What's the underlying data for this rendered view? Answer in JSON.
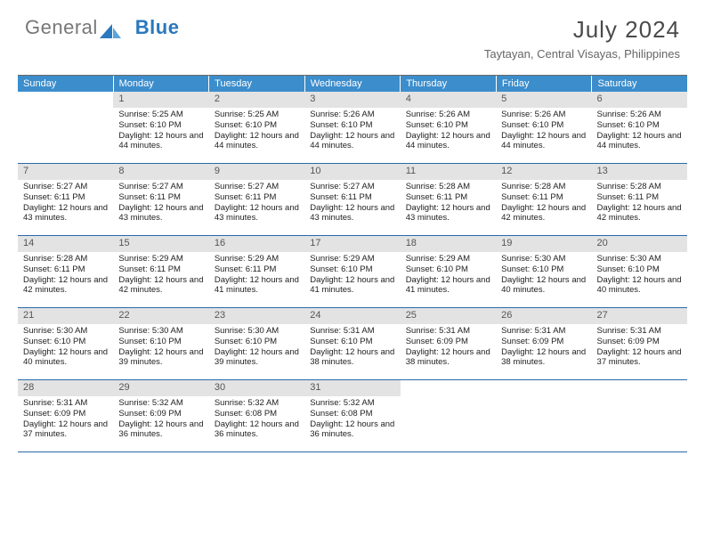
{
  "logo": {
    "text_general": "General",
    "text_blue": "Blue"
  },
  "title": "July 2024",
  "subtitle": "Taytayan, Central Visayas, Philippines",
  "colors": {
    "header_blue": "#3c8dcc",
    "week_divider": "#2a6aa8",
    "daynum_bg": "#e3e3e3",
    "logo_blue": "#2a78bd"
  },
  "days_of_week": [
    "Sunday",
    "Monday",
    "Tuesday",
    "Wednesday",
    "Thursday",
    "Friday",
    "Saturday"
  ],
  "first_weekday_offset": 1,
  "days": [
    {
      "n": 1,
      "sunrise": "5:25 AM",
      "sunset": "6:10 PM",
      "daylight": "12 hours and 44 minutes."
    },
    {
      "n": 2,
      "sunrise": "5:25 AM",
      "sunset": "6:10 PM",
      "daylight": "12 hours and 44 minutes."
    },
    {
      "n": 3,
      "sunrise": "5:26 AM",
      "sunset": "6:10 PM",
      "daylight": "12 hours and 44 minutes."
    },
    {
      "n": 4,
      "sunrise": "5:26 AM",
      "sunset": "6:10 PM",
      "daylight": "12 hours and 44 minutes."
    },
    {
      "n": 5,
      "sunrise": "5:26 AM",
      "sunset": "6:10 PM",
      "daylight": "12 hours and 44 minutes."
    },
    {
      "n": 6,
      "sunrise": "5:26 AM",
      "sunset": "6:10 PM",
      "daylight": "12 hours and 44 minutes."
    },
    {
      "n": 7,
      "sunrise": "5:27 AM",
      "sunset": "6:11 PM",
      "daylight": "12 hours and 43 minutes."
    },
    {
      "n": 8,
      "sunrise": "5:27 AM",
      "sunset": "6:11 PM",
      "daylight": "12 hours and 43 minutes."
    },
    {
      "n": 9,
      "sunrise": "5:27 AM",
      "sunset": "6:11 PM",
      "daylight": "12 hours and 43 minutes."
    },
    {
      "n": 10,
      "sunrise": "5:27 AM",
      "sunset": "6:11 PM",
      "daylight": "12 hours and 43 minutes."
    },
    {
      "n": 11,
      "sunrise": "5:28 AM",
      "sunset": "6:11 PM",
      "daylight": "12 hours and 43 minutes."
    },
    {
      "n": 12,
      "sunrise": "5:28 AM",
      "sunset": "6:11 PM",
      "daylight": "12 hours and 42 minutes."
    },
    {
      "n": 13,
      "sunrise": "5:28 AM",
      "sunset": "6:11 PM",
      "daylight": "12 hours and 42 minutes."
    },
    {
      "n": 14,
      "sunrise": "5:28 AM",
      "sunset": "6:11 PM",
      "daylight": "12 hours and 42 minutes."
    },
    {
      "n": 15,
      "sunrise": "5:29 AM",
      "sunset": "6:11 PM",
      "daylight": "12 hours and 42 minutes."
    },
    {
      "n": 16,
      "sunrise": "5:29 AM",
      "sunset": "6:11 PM",
      "daylight": "12 hours and 41 minutes."
    },
    {
      "n": 17,
      "sunrise": "5:29 AM",
      "sunset": "6:10 PM",
      "daylight": "12 hours and 41 minutes."
    },
    {
      "n": 18,
      "sunrise": "5:29 AM",
      "sunset": "6:10 PM",
      "daylight": "12 hours and 41 minutes."
    },
    {
      "n": 19,
      "sunrise": "5:30 AM",
      "sunset": "6:10 PM",
      "daylight": "12 hours and 40 minutes."
    },
    {
      "n": 20,
      "sunrise": "5:30 AM",
      "sunset": "6:10 PM",
      "daylight": "12 hours and 40 minutes."
    },
    {
      "n": 21,
      "sunrise": "5:30 AM",
      "sunset": "6:10 PM",
      "daylight": "12 hours and 40 minutes."
    },
    {
      "n": 22,
      "sunrise": "5:30 AM",
      "sunset": "6:10 PM",
      "daylight": "12 hours and 39 minutes."
    },
    {
      "n": 23,
      "sunrise": "5:30 AM",
      "sunset": "6:10 PM",
      "daylight": "12 hours and 39 minutes."
    },
    {
      "n": 24,
      "sunrise": "5:31 AM",
      "sunset": "6:10 PM",
      "daylight": "12 hours and 38 minutes."
    },
    {
      "n": 25,
      "sunrise": "5:31 AM",
      "sunset": "6:09 PM",
      "daylight": "12 hours and 38 minutes."
    },
    {
      "n": 26,
      "sunrise": "5:31 AM",
      "sunset": "6:09 PM",
      "daylight": "12 hours and 38 minutes."
    },
    {
      "n": 27,
      "sunrise": "5:31 AM",
      "sunset": "6:09 PM",
      "daylight": "12 hours and 37 minutes."
    },
    {
      "n": 28,
      "sunrise": "5:31 AM",
      "sunset": "6:09 PM",
      "daylight": "12 hours and 37 minutes."
    },
    {
      "n": 29,
      "sunrise": "5:32 AM",
      "sunset": "6:09 PM",
      "daylight": "12 hours and 36 minutes."
    },
    {
      "n": 30,
      "sunrise": "5:32 AM",
      "sunset": "6:08 PM",
      "daylight": "12 hours and 36 minutes."
    },
    {
      "n": 31,
      "sunrise": "5:32 AM",
      "sunset": "6:08 PM",
      "daylight": "12 hours and 36 minutes."
    }
  ],
  "labels": {
    "sunrise": "Sunrise:",
    "sunset": "Sunset:",
    "daylight": "Daylight:"
  }
}
